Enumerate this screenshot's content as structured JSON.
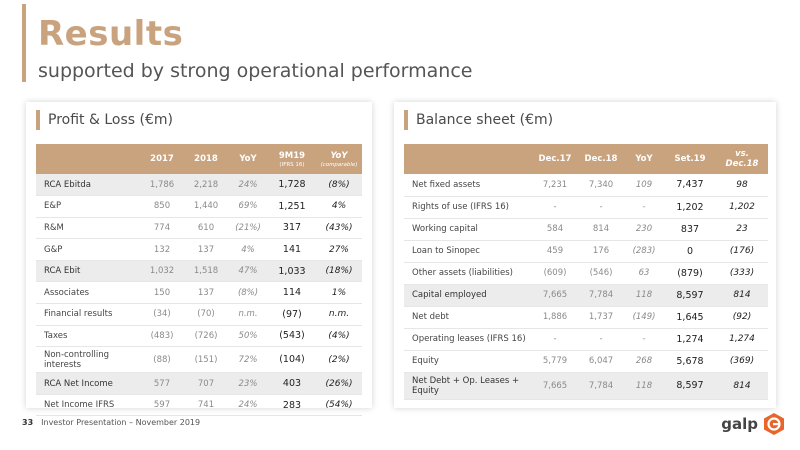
{
  "header": {
    "title": "Results",
    "subtitle": "supported by strong operational performance"
  },
  "profit_loss": {
    "title": "Profit & Loss (€m)",
    "columns": [
      {
        "main": "",
        "sub": ""
      },
      {
        "main": "2017",
        "sub": ""
      },
      {
        "main": "2018",
        "sub": ""
      },
      {
        "main": "YoY",
        "sub": ""
      },
      {
        "main": "9M19",
        "sub": "(IFRS 16)"
      },
      {
        "main": "YoY",
        "sub": "(comparable)"
      }
    ],
    "rows": [
      {
        "label": "RCA Ebitda",
        "v2017": "1,786",
        "v2018": "2,218",
        "yoy": "24%",
        "v9m19": "1,728",
        "yoy2": "(8%)",
        "highlight": true
      },
      {
        "label": "E&P",
        "v2017": "850",
        "v2018": "1,440",
        "yoy": "69%",
        "v9m19": "1,251",
        "yoy2": "4%",
        "highlight": false
      },
      {
        "label": "R&M",
        "v2017": "774",
        "v2018": "610",
        "yoy": "(21%)",
        "v9m19": "317",
        "yoy2": "(43%)",
        "highlight": false
      },
      {
        "label": "G&P",
        "v2017": "132",
        "v2018": "137",
        "yoy": "4%",
        "v9m19": "141",
        "yoy2": "27%",
        "highlight": false
      },
      {
        "label": "RCA Ebit",
        "v2017": "1,032",
        "v2018": "1,518",
        "yoy": "47%",
        "v9m19": "1,033",
        "yoy2": "(18%)",
        "highlight": true
      },
      {
        "label": "Associates",
        "v2017": "150",
        "v2018": "137",
        "yoy": "(8%)",
        "v9m19": "114",
        "yoy2": "1%",
        "highlight": false
      },
      {
        "label": "Financial results",
        "v2017": "(34)",
        "v2018": "(70)",
        "yoy": "n.m.",
        "v9m19": "(97)",
        "yoy2": "n.m.",
        "highlight": false
      },
      {
        "label": "Taxes",
        "v2017": "(483)",
        "v2018": "(726)",
        "yoy": "50%",
        "v9m19": "(543)",
        "yoy2": "(4%)",
        "highlight": false
      },
      {
        "label": "Non-controlling interests",
        "v2017": "(88)",
        "v2018": "(151)",
        "yoy": "72%",
        "v9m19": "(104)",
        "yoy2": "(2%)",
        "highlight": false
      },
      {
        "label": "RCA Net Income",
        "v2017": "577",
        "v2018": "707",
        "yoy": "23%",
        "v9m19": "403",
        "yoy2": "(26%)",
        "highlight": true
      },
      {
        "label": "Net Income IFRS",
        "v2017": "597",
        "v2018": "741",
        "yoy": "24%",
        "v9m19": "283",
        "yoy2": "(54%)",
        "highlight": false
      }
    ]
  },
  "balance_sheet": {
    "title": "Balance sheet (€m)",
    "columns": [
      "",
      "Dec.17",
      "Dec.18",
      "YoY",
      "Set.19",
      "vs. Dec.18"
    ],
    "rows": [
      {
        "label": "Net fixed assets",
        "d17": "7,231",
        "d18": "7,340",
        "yoy": "109",
        "s19": "7,437",
        "vs": "98",
        "highlight": false
      },
      {
        "label": "Rights of use (IFRS 16)",
        "d17": "-",
        "d18": "-",
        "yoy": "-",
        "s19": "1,202",
        "vs": "1,202",
        "highlight": false
      },
      {
        "label": "Working capital",
        "d17": "584",
        "d18": "814",
        "yoy": "230",
        "s19": "837",
        "vs": "23",
        "highlight": false
      },
      {
        "label": "Loan to Sinopec",
        "d17": "459",
        "d18": "176",
        "yoy": "(283)",
        "s19": "0",
        "vs": "(176)",
        "highlight": false
      },
      {
        "label": "Other assets (liabilities)",
        "d17": "(609)",
        "d18": "(546)",
        "yoy": "63",
        "s19": "(879)",
        "vs": "(333)",
        "highlight": false
      },
      {
        "label": "Capital employed",
        "d17": "7,665",
        "d18": "7,784",
        "yoy": "118",
        "s19": "8,597",
        "vs": "814",
        "highlight": true
      },
      {
        "label": "Net debt",
        "d17": "1,886",
        "d18": "1,737",
        "yoy": "(149)",
        "s19": "1,645",
        "vs": "(92)",
        "highlight": false
      },
      {
        "label": "Operating leases (IFRS 16)",
        "d17": "-",
        "d18": "-",
        "yoy": "-",
        "s19": "1,274",
        "vs": "1,274",
        "highlight": false
      },
      {
        "label": "Equity",
        "d17": "5,779",
        "d18": "6,047",
        "yoy": "268",
        "s19": "5,678",
        "vs": "(369)",
        "highlight": false
      },
      {
        "label": "Net Debt + Op. Leases + Equity",
        "d17": "7,665",
        "d18": "7,784",
        "yoy": "118",
        "s19": "8,597",
        "vs": "814",
        "highlight": true
      }
    ]
  },
  "footer": {
    "page_number": "33",
    "text": "Investor Presentation – November 2019",
    "logo_text": "galp"
  },
  "colors": {
    "accent": "#c9a27e",
    "logo_orange": "#e8652b",
    "highlight_row": "#ececec"
  }
}
